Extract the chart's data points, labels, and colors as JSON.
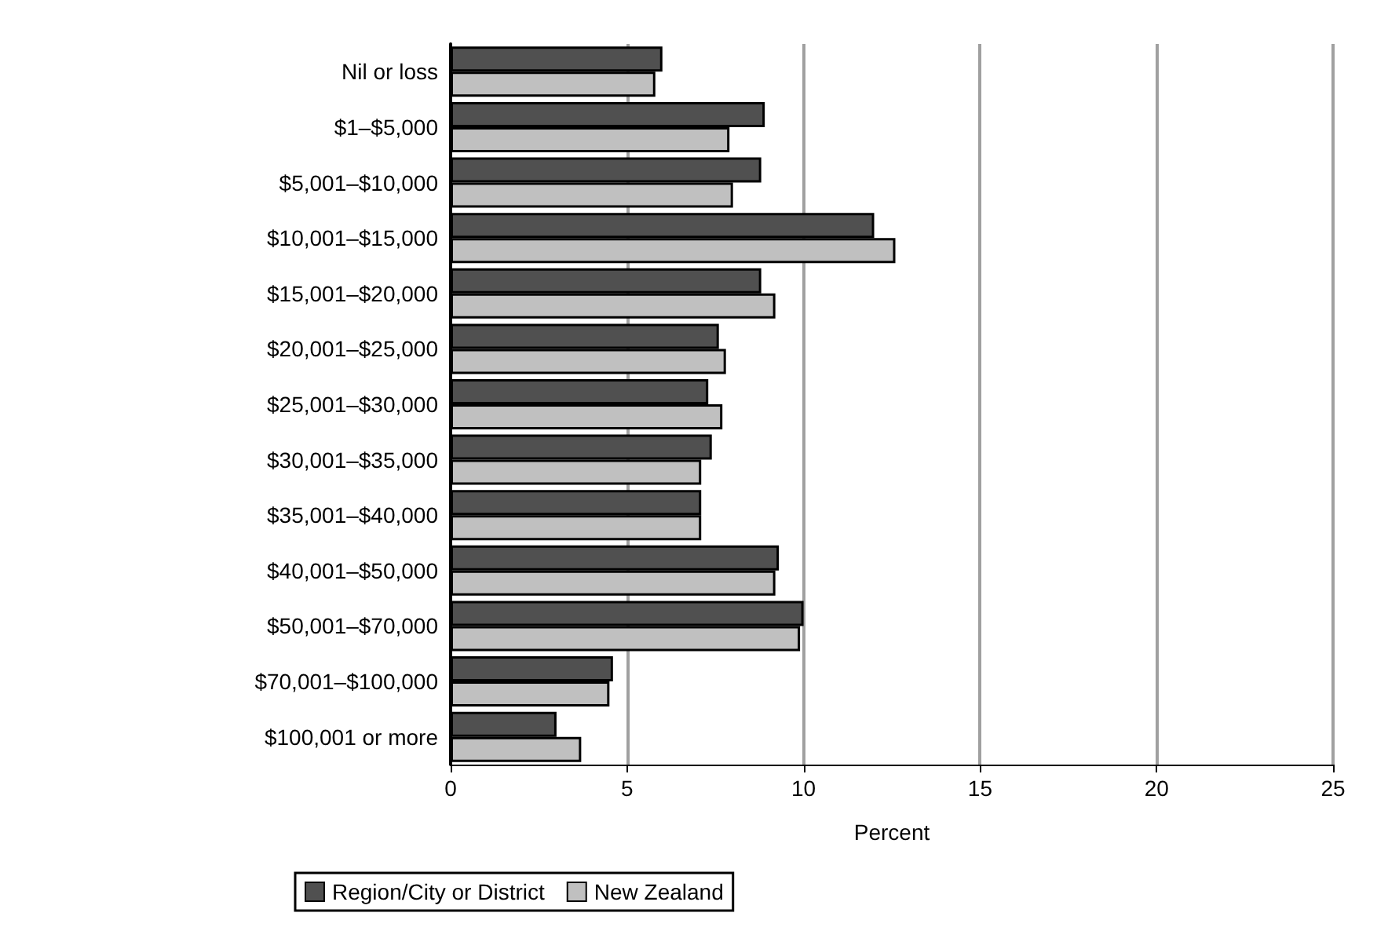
{
  "chart_data": {
    "type": "bar",
    "orientation": "horizontal",
    "xlabel": "Percent",
    "categories": [
      "Nil or loss",
      "$1–$5,000",
      "$5,001–$10,000",
      "$10,001–$15,000",
      "$15,001–$20,000",
      "$20,001–$25,000",
      "$25,001–$30,000",
      "$30,001–$35,000",
      "$35,001–$40,000",
      "$40,001–$50,000",
      "$50,001–$70,000",
      "$70,001–$100,000",
      "$100,001 or more"
    ],
    "series": [
      {
        "name": "Region/City or District",
        "color": "#505050",
        "values": [
          6.0,
          8.9,
          8.8,
          12.0,
          8.8,
          7.6,
          7.3,
          7.4,
          7.1,
          9.3,
          10.0,
          4.6,
          3.0
        ]
      },
      {
        "name": "New Zealand",
        "color": "#c0c0c0",
        "values": [
          5.8,
          7.9,
          8.0,
          12.6,
          9.2,
          7.8,
          7.7,
          7.1,
          7.1,
          9.2,
          9.9,
          4.5,
          3.7
        ]
      }
    ],
    "xlim": [
      0,
      25
    ],
    "xticks": [
      0,
      5,
      10,
      15,
      20,
      25
    ],
    "grid": "x",
    "legend": "bottom"
  }
}
